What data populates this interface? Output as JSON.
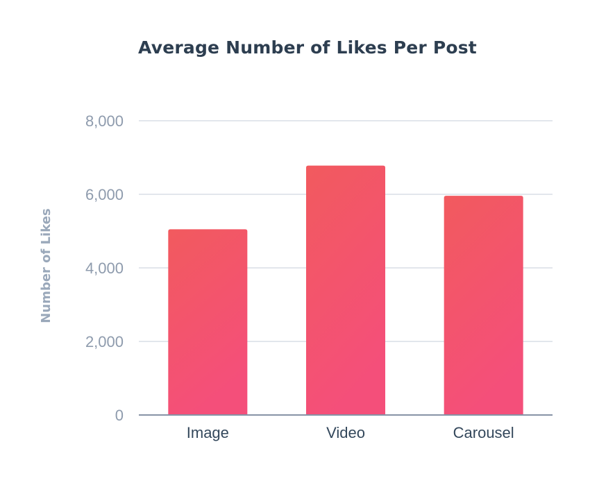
{
  "chart_data": {
    "type": "bar",
    "title": "Average Number of Likes Per Post",
    "xlabel": "",
    "ylabel": "Number of Likes",
    "categories": [
      "Image",
      "Video",
      "Carousel"
    ],
    "values": [
      5050,
      6780,
      5960
    ],
    "ylim": [
      0,
      8000
    ],
    "yticks": [
      0,
      2000,
      4000,
      6000,
      8000
    ],
    "ytick_labels": [
      "0",
      "2,000",
      "4,000",
      "6,000",
      "8,000"
    ],
    "grid": true,
    "legend": "none",
    "colors": {
      "bar_top": "#f25a5e",
      "bar_bottom": "#f44f7a",
      "gridline": "#e2e6ec",
      "axis_line": "#8693a6",
      "tick_text": "#8e9bad",
      "category_text": "#33475b",
      "title_text": "#2d3e50",
      "axis_title_text": "#9aa8ba"
    }
  }
}
